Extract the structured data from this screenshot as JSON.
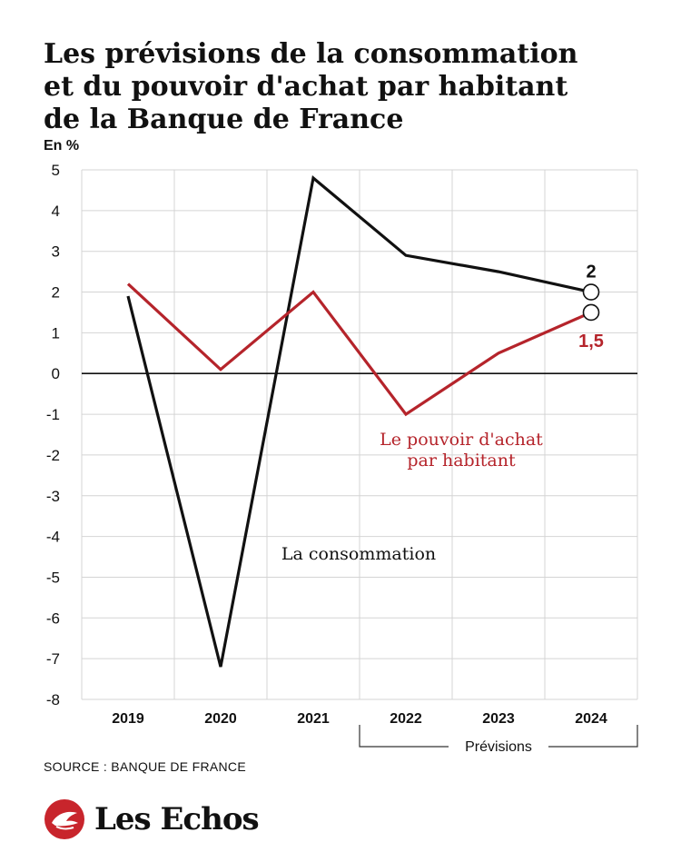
{
  "title_lines": [
    "Les prévisions de la consommation",
    "et du pouvoir d'achat par habitant",
    "de la Banque de France"
  ],
  "source": "SOURCE : BANQUE DE FRANCE",
  "brand": {
    "name": "Les Echos",
    "logo_icon": "les-echos-bird-logo-icon",
    "logo_color": "#c8252c"
  },
  "chart_data": {
    "type": "line",
    "unit_label": "En %",
    "x": [
      "2019",
      "2020",
      "2021",
      "2022",
      "2023",
      "2024"
    ],
    "ylim": [
      -8,
      5
    ],
    "yticks": [
      "5",
      "4",
      "3",
      "2",
      "1",
      "0",
      "-1",
      "-2",
      "-3",
      "-4",
      "-5",
      "-6",
      "-7",
      "-8"
    ],
    "grid": true,
    "forecast_label": "Prévisions",
    "forecast_range": [
      "2022",
      "2024"
    ],
    "series": [
      {
        "key": "consommation",
        "name": "La consommation",
        "color": "#111111",
        "values": [
          1.9,
          -7.2,
          4.8,
          2.9,
          2.5,
          2.0
        ],
        "end_label": "2"
      },
      {
        "key": "pouvoir",
        "name_lines": [
          "Le pouvoir d'achat",
          "par habitant"
        ],
        "color": "#b5242b",
        "values": [
          2.2,
          0.1,
          2.0,
          -1.0,
          0.5,
          1.5
        ],
        "end_label": "1,5"
      }
    ]
  }
}
